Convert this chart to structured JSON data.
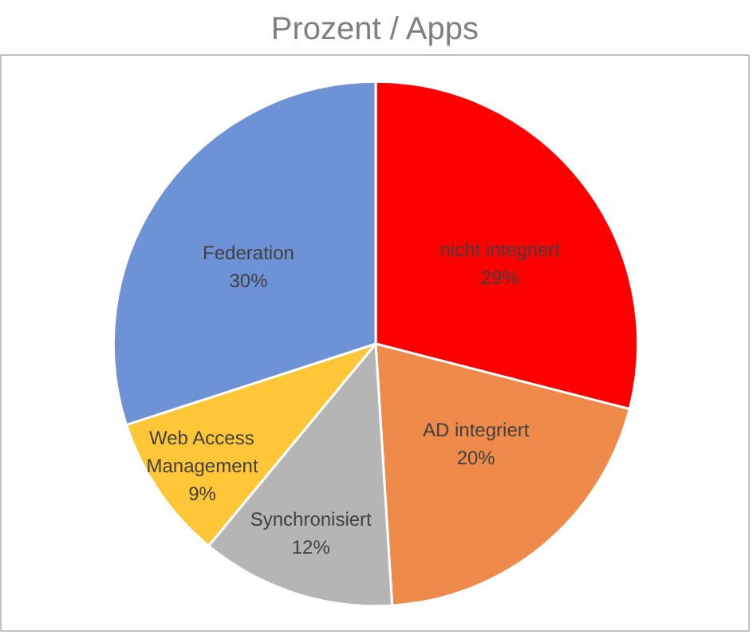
{
  "chart_data": {
    "type": "pie",
    "title": "Prozent / Apps",
    "categories": [
      "nicht integriert",
      "AD integriert",
      "Synchronisiert",
      "Web Access Management",
      "Federation"
    ],
    "values": [
      29,
      20,
      12,
      9,
      30
    ],
    "colors": [
      "#ff0000",
      "#ee8a4a",
      "#b5b5b5",
      "#ffc637",
      "#6d93d6"
    ],
    "value_labels": [
      "29%",
      "20%",
      "12%",
      "9%",
      "30%"
    ],
    "legend": false
  }
}
